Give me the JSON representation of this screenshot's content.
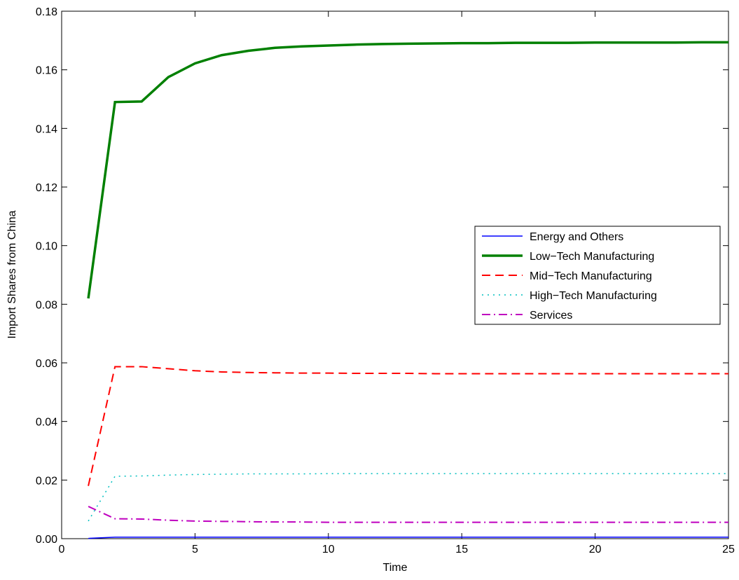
{
  "chart_data": {
    "type": "line",
    "xlabel": "Time",
    "ylabel": "Import Shares from China",
    "x": [
      1,
      2,
      3,
      4,
      5,
      6,
      7,
      8,
      9,
      10,
      11,
      12,
      13,
      14,
      15,
      16,
      17,
      18,
      19,
      20,
      21,
      22,
      23,
      24,
      25
    ],
    "series": [
      {
        "name": "Energy and Others",
        "color": "#0000ff",
        "style": "-",
        "linewidth": 1.5,
        "values": [
          0.0001,
          0.0005,
          0.0005,
          0.0005,
          0.0005,
          0.0005,
          0.0005,
          0.0005,
          0.0005,
          0.0005,
          0.0005,
          0.0005,
          0.0005,
          0.0005,
          0.0005,
          0.0005,
          0.0005,
          0.0005,
          0.0005,
          0.0005,
          0.0005,
          0.0005,
          0.0005,
          0.0005,
          0.0005
        ]
      },
      {
        "name": "Low−Tech Manufacturing",
        "color": "#008000",
        "style": "-",
        "linewidth": 3.5,
        "values": [
          0.082,
          0.149,
          0.1492,
          0.1575,
          0.1622,
          0.165,
          0.1665,
          0.1675,
          0.168,
          0.1683,
          0.1686,
          0.1688,
          0.1689,
          0.169,
          0.1691,
          0.1691,
          0.1692,
          0.1692,
          0.1692,
          0.1693,
          0.1693,
          0.1693,
          0.1693,
          0.1694,
          0.1694
        ]
      },
      {
        "name": "Mid−Tech Manufacturing",
        "color": "#ff0000",
        "style": "--",
        "linewidth": 2,
        "values": [
          0.018,
          0.0587,
          0.0587,
          0.058,
          0.0573,
          0.0569,
          0.0567,
          0.0566,
          0.0565,
          0.0565,
          0.0564,
          0.0564,
          0.0564,
          0.0563,
          0.0563,
          0.0563,
          0.0563,
          0.0563,
          0.0563,
          0.0563,
          0.0563,
          0.0563,
          0.0563,
          0.0563,
          0.0563
        ]
      },
      {
        "name": "High−Tech Manufacturing",
        "color": "#00bfbf",
        "style": ":",
        "linewidth": 1.5,
        "values": [
          0.006,
          0.0213,
          0.0214,
          0.0217,
          0.0219,
          0.022,
          0.0221,
          0.0221,
          0.0221,
          0.0222,
          0.0222,
          0.0222,
          0.0222,
          0.0222,
          0.0222,
          0.0222,
          0.0222,
          0.0222,
          0.0222,
          0.0222,
          0.0222,
          0.0222,
          0.0222,
          0.0222,
          0.0222
        ]
      },
      {
        "name": "Services",
        "color": "#bf00bf",
        "style": "-.",
        "linewidth": 2,
        "values": [
          0.011,
          0.0068,
          0.0067,
          0.0063,
          0.006,
          0.0059,
          0.0058,
          0.0057,
          0.0057,
          0.0056,
          0.0056,
          0.0056,
          0.0056,
          0.0056,
          0.0056,
          0.0056,
          0.0056,
          0.0056,
          0.0056,
          0.0056,
          0.0056,
          0.0056,
          0.0056,
          0.0056,
          0.0056
        ]
      }
    ],
    "xlim": [
      0,
      25
    ],
    "xticks": [
      0,
      5,
      10,
      15,
      20,
      25
    ],
    "ylim": [
      0,
      0.18
    ],
    "yticks": [
      {
        "value": 0,
        "label": "0.00"
      },
      0.02,
      0.04,
      0.06,
      0.08,
      {
        "value": 0.1,
        "label": "0.10"
      },
      0.12,
      0.14,
      0.16,
      0.18
    ],
    "grid": false,
    "legend": "right"
  }
}
